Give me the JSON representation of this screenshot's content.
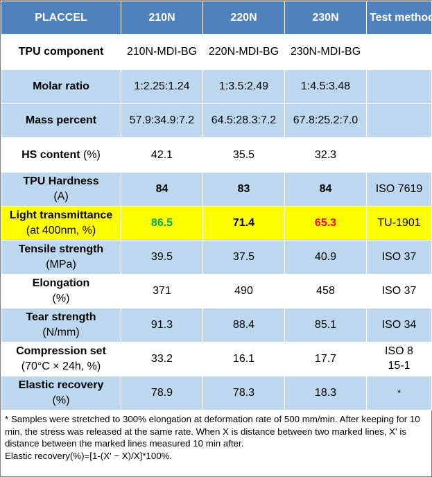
{
  "header": [
    "PLACCEL",
    "210N",
    "220N",
    "230N",
    "Test method"
  ],
  "rows": [
    {
      "label": "TPU component",
      "sub": "",
      "values": [
        "210N-MDI-BG",
        "220N-MDI-BG",
        "230N-MDI-BG"
      ],
      "method": ""
    },
    {
      "label": "Molar ratio",
      "sub": "",
      "values": [
        "1:2.25:1.24",
        "1:3.5:2.49",
        "1:4.5:3.48"
      ],
      "method": ""
    },
    {
      "label": "Mass percent",
      "sub": "",
      "values": [
        "57.9:34.9:7.2",
        "64.5:28.3:7.2",
        "67.8:25.2:7.0"
      ],
      "method": ""
    },
    {
      "label": "HS content",
      "sub": "(%)",
      "values": [
        "42.1",
        "35.5",
        "32.3"
      ],
      "method": ""
    },
    {
      "label": "TPU Hardness",
      "sub": "(A)",
      "values": [
        "84",
        "83",
        "84"
      ],
      "method": "ISO 7619"
    },
    {
      "label": "Light transmittance",
      "sub": "(at 400nm, %)",
      "values": [
        "86.5",
        "71.4",
        "65.3"
      ],
      "method": "TU-1901"
    },
    {
      "label": "Tensile strength",
      "sub": "(MPa)",
      "values": [
        "39.5",
        "37.5",
        "40.9"
      ],
      "method": "ISO 37"
    },
    {
      "label": "Elongation",
      "sub": "(%)",
      "values": [
        "371",
        "490",
        "458"
      ],
      "method": "ISO 37"
    },
    {
      "label": "Tear strength",
      "sub": "(N/mm)",
      "values": [
        "91.3",
        "88.4",
        "85.1"
      ],
      "method": "ISO 34"
    },
    {
      "label": "Compression set",
      "sub": "(70°C × 24h, %)",
      "values": [
        "33.2",
        "16.1",
        "17.7"
      ],
      "method": "ISO 8\n15-1"
    },
    {
      "label": "Elastic recovery",
      "sub": "(%)",
      "values": [
        "78.9",
        "78.3",
        "18.3"
      ],
      "method": "*"
    }
  ],
  "footnote": {
    "line1": "* Samples were stretched to 300% elongation at deformation rate of 500 mm/min. After keeping for 10 min, the stress was released at the same rate. When X  is distance between two  marked lines, X' is distance between the marked lines measured 10 min after.",
    "line2": "Elastic recovery(%)=[1-(X' − X)/X]*100%."
  },
  "colors": {
    "header_bg": "#4f81bd",
    "band_blue": "#bdd7ee",
    "highlight": "#ffff00",
    "green_value": "#00b050",
    "red_value": "#ff0000"
  }
}
